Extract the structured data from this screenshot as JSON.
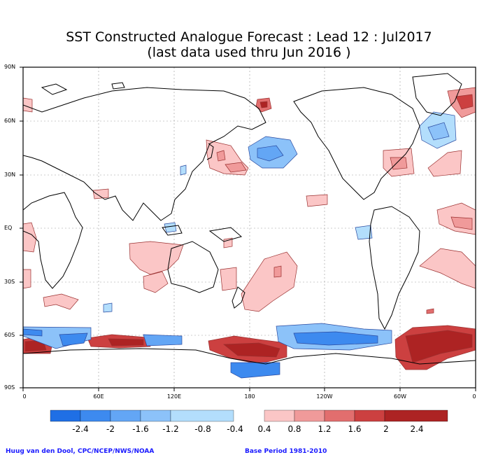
{
  "title": {
    "line1": "SST Constructed Analogue Forecast : Lead 12 : Jul2017",
    "line2": "(last data used thru Jun 2016 )"
  },
  "map": {
    "lat_labels": [
      "90N",
      "60N",
      "30N",
      "EQ",
      "30S",
      "60S",
      "90S"
    ],
    "lon_labels": [
      "0",
      "60E",
      "120E",
      "180",
      "120W",
      "60W",
      "0"
    ]
  },
  "colorbar": {
    "labels": [
      "-2.4",
      "-2",
      "-1.6",
      "-1.2",
      "-0.8",
      "-0.4",
      "0.4",
      "0.8",
      "1.2",
      "1.6",
      "2",
      "2.4"
    ],
    "negative_colors": [
      "#1f6fe5",
      "#3d8aef",
      "#63a6f5",
      "#8cc2f9",
      "#b3defc"
    ],
    "positive_colors": [
      "#fbc6c6",
      "#f09a9a",
      "#e26e6e",
      "#cc4040",
      "#ad2323"
    ]
  },
  "footer": {
    "left": "Huug van den Dool, CPC/NCEP/NWS/NOAA",
    "right": "Base Period 1981-2010"
  }
}
